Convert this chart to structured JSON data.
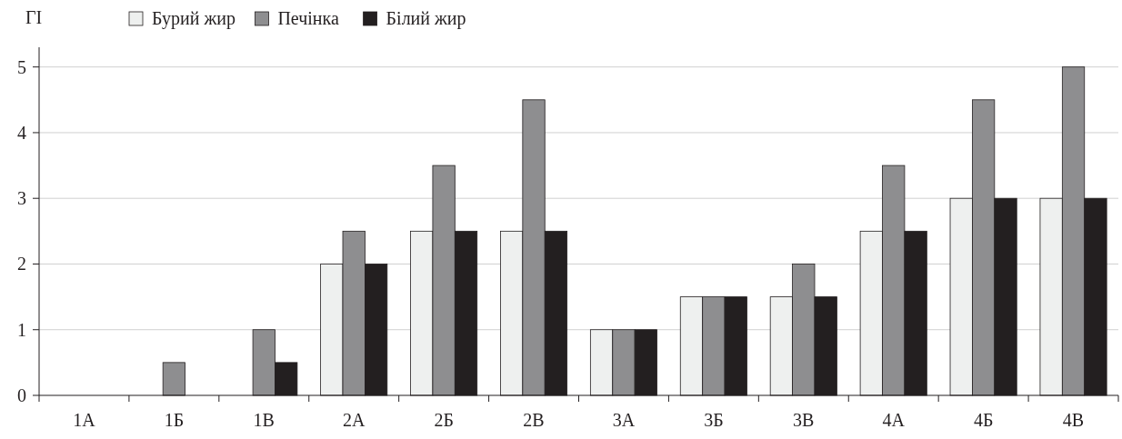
{
  "chart_data": {
    "type": "bar",
    "ylabel": "ГІ",
    "categories": [
      "1А",
      "1Б",
      "1В",
      "2А",
      "2Б",
      "2В",
      "3А",
      "3Б",
      "3В",
      "4А",
      "4Б",
      "4В"
    ],
    "series": [
      {
        "name": "Бурий жир",
        "color": "#eef0ef",
        "values": [
          0,
          0,
          0,
          2,
          2.5,
          2.5,
          1,
          1.5,
          1.5,
          2.5,
          3,
          3
        ]
      },
      {
        "name": "Печінка",
        "color": "#8e8e90",
        "values": [
          0,
          0.5,
          1,
          2.5,
          3.5,
          4.5,
          1,
          1.5,
          2,
          3.5,
          4.5,
          5
        ]
      },
      {
        "name": "Білий жир",
        "color": "#231f20",
        "values": [
          0,
          0,
          0.5,
          2,
          2.5,
          2.5,
          1,
          1.5,
          1.5,
          2.5,
          3,
          3
        ]
      }
    ],
    "ylim": [
      0,
      5.3
    ],
    "yticks": [
      0,
      1,
      2,
      3,
      4,
      5
    ],
    "grid": "y",
    "legend": "top left"
  }
}
